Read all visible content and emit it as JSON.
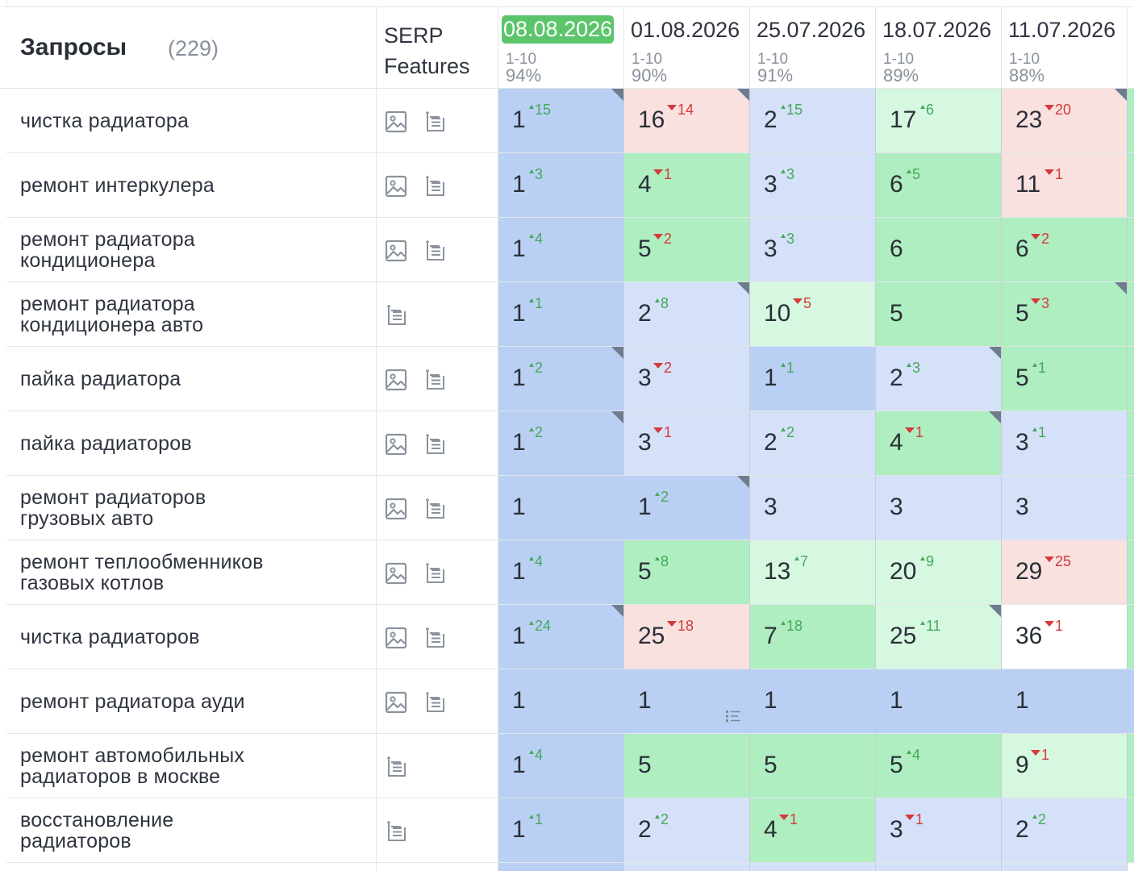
{
  "header": {
    "title": "Запросы",
    "count": "(229)",
    "serp_label": "SERP\nFeatures",
    "dates": [
      {
        "date": "08.08.2026",
        "range": "1-10",
        "pct": "94%",
        "active": true
      },
      {
        "date": "01.08.2026",
        "range": "1-10",
        "pct": "90%",
        "active": false
      },
      {
        "date": "25.07.2026",
        "range": "1-10",
        "pct": "91%",
        "active": false
      },
      {
        "date": "18.07.2026",
        "range": "1-10",
        "pct": "89%",
        "active": false
      },
      {
        "date": "11.07.2026",
        "range": "1-10",
        "pct": "88%",
        "active": false
      }
    ],
    "next_date_partial": "0"
  },
  "colors": {
    "blue_dark": "#b9d0f4",
    "blue_light": "#d4e1f8",
    "green": "#aeeec0",
    "green_light": "#d6f8e0",
    "red_light": "#f9e1df",
    "white": "#ffffff",
    "active_date": "#5cc56c",
    "up": "#46a85a",
    "down": "#d43a3a"
  },
  "rows": [
    {
      "query": "чистка радиатора",
      "serp": [
        "image",
        "snippet"
      ],
      "cells": [
        {
          "pos": "1",
          "delta": "15",
          "dir": "up",
          "bg": "blue_dark",
          "corner": true
        },
        {
          "pos": "16",
          "delta": "14",
          "dir": "down",
          "bg": "red_light",
          "corner": true
        },
        {
          "pos": "2",
          "delta": "15",
          "dir": "up",
          "bg": "blue_light"
        },
        {
          "pos": "17",
          "delta": "6",
          "dir": "up",
          "bg": "green_light"
        },
        {
          "pos": "23",
          "delta": "20",
          "dir": "down",
          "bg": "red_light",
          "corner": true
        }
      ],
      "edge": "green"
    },
    {
      "query": "ремонт интеркулера",
      "serp": [
        "image",
        "snippet"
      ],
      "cells": [
        {
          "pos": "1",
          "delta": "3",
          "dir": "up",
          "bg": "blue_dark"
        },
        {
          "pos": "4",
          "delta": "1",
          "dir": "down",
          "bg": "green"
        },
        {
          "pos": "3",
          "delta": "3",
          "dir": "up",
          "bg": "blue_light"
        },
        {
          "pos": "6",
          "delta": "5",
          "dir": "up",
          "bg": "green"
        },
        {
          "pos": "11",
          "delta": "1",
          "dir": "down",
          "bg": "red_light"
        }
      ],
      "edge": "green"
    },
    {
      "query": "ремонт радиатора\nкондиционера",
      "serp": [
        "image",
        "snippet"
      ],
      "cells": [
        {
          "pos": "1",
          "delta": "4",
          "dir": "up",
          "bg": "blue_dark"
        },
        {
          "pos": "5",
          "delta": "2",
          "dir": "down",
          "bg": "green"
        },
        {
          "pos": "3",
          "delta": "3",
          "dir": "up",
          "bg": "blue_light"
        },
        {
          "pos": "6",
          "delta": "",
          "dir": "",
          "bg": "green"
        },
        {
          "pos": "6",
          "delta": "2",
          "dir": "down",
          "bg": "green"
        }
      ],
      "edge": "green"
    },
    {
      "query": "ремонт радиатора\nкондиционера авто",
      "serp": [
        "snippet"
      ],
      "cells": [
        {
          "pos": "1",
          "delta": "1",
          "dir": "up",
          "bg": "blue_dark"
        },
        {
          "pos": "2",
          "delta": "8",
          "dir": "up",
          "bg": "blue_light",
          "corner": true
        },
        {
          "pos": "10",
          "delta": "5",
          "dir": "down",
          "bg": "green_light"
        },
        {
          "pos": "5",
          "delta": "",
          "dir": "",
          "bg": "green"
        },
        {
          "pos": "5",
          "delta": "3",
          "dir": "down",
          "bg": "green",
          "corner": true
        }
      ],
      "edge": "green"
    },
    {
      "query": "пайка радиатора",
      "serp": [
        "image",
        "snippet"
      ],
      "cells": [
        {
          "pos": "1",
          "delta": "2",
          "dir": "up",
          "bg": "blue_dark",
          "corner": true
        },
        {
          "pos": "3",
          "delta": "2",
          "dir": "down",
          "bg": "blue_light"
        },
        {
          "pos": "1",
          "delta": "1",
          "dir": "up",
          "bg": "blue_dark"
        },
        {
          "pos": "2",
          "delta": "3",
          "dir": "up",
          "bg": "blue_light",
          "corner": true
        },
        {
          "pos": "5",
          "delta": "1",
          "dir": "up",
          "bg": "green"
        }
      ],
      "edge": "green"
    },
    {
      "query": "пайка радиаторов",
      "serp": [
        "image",
        "snippet"
      ],
      "cells": [
        {
          "pos": "1",
          "delta": "2",
          "dir": "up",
          "bg": "blue_dark",
          "corner": true
        },
        {
          "pos": "3",
          "delta": "1",
          "dir": "down",
          "bg": "blue_light"
        },
        {
          "pos": "2",
          "delta": "2",
          "dir": "up",
          "bg": "blue_light"
        },
        {
          "pos": "4",
          "delta": "1",
          "dir": "down",
          "bg": "green",
          "corner": true
        },
        {
          "pos": "3",
          "delta": "1",
          "dir": "up",
          "bg": "blue_light"
        }
      ],
      "edge": "green"
    },
    {
      "query": "ремонт радиаторов\nгрузовых авто",
      "serp": [
        "image",
        "snippet"
      ],
      "cells": [
        {
          "pos": "1",
          "delta": "",
          "dir": "",
          "bg": "blue_dark"
        },
        {
          "pos": "1",
          "delta": "2",
          "dir": "up",
          "bg": "blue_dark",
          "corner": true
        },
        {
          "pos": "3",
          "delta": "",
          "dir": "",
          "bg": "blue_light"
        },
        {
          "pos": "3",
          "delta": "",
          "dir": "",
          "bg": "blue_light"
        },
        {
          "pos": "3",
          "delta": "",
          "dir": "",
          "bg": "blue_light"
        }
      ],
      "edge": "green"
    },
    {
      "query": "ремонт теплообменников\nгазовых котлов",
      "serp": [
        "image",
        "snippet"
      ],
      "cells": [
        {
          "pos": "1",
          "delta": "4",
          "dir": "up",
          "bg": "blue_dark"
        },
        {
          "pos": "5",
          "delta": "8",
          "dir": "up",
          "bg": "green"
        },
        {
          "pos": "13",
          "delta": "7",
          "dir": "up",
          "bg": "green_light"
        },
        {
          "pos": "20",
          "delta": "9",
          "dir": "up",
          "bg": "green_light"
        },
        {
          "pos": "29",
          "delta": "25",
          "dir": "down",
          "bg": "red_light"
        }
      ],
      "edge": "green"
    },
    {
      "query": "чистка радиаторов",
      "serp": [
        "image",
        "snippet"
      ],
      "cells": [
        {
          "pos": "1",
          "delta": "24",
          "dir": "up",
          "bg": "blue_dark",
          "corner": true
        },
        {
          "pos": "25",
          "delta": "18",
          "dir": "down",
          "bg": "red_light"
        },
        {
          "pos": "7",
          "delta": "18",
          "dir": "up",
          "bg": "green"
        },
        {
          "pos": "25",
          "delta": "11",
          "dir": "up",
          "bg": "green_light",
          "corner": true
        },
        {
          "pos": "36",
          "delta": "1",
          "dir": "down",
          "bg": "white"
        }
      ],
      "edge": "green"
    },
    {
      "query": "ремонт радиатора ауди",
      "serp": [
        "image",
        "snippet"
      ],
      "cells": [
        {
          "pos": "1",
          "delta": "",
          "dir": "",
          "bg": "blue_dark"
        },
        {
          "pos": "1",
          "delta": "",
          "dir": "",
          "bg": "blue_dark",
          "snippet": true
        },
        {
          "pos": "1",
          "delta": "",
          "dir": "",
          "bg": "blue_dark"
        },
        {
          "pos": "1",
          "delta": "",
          "dir": "",
          "bg": "blue_dark"
        },
        {
          "pos": "1",
          "delta": "",
          "dir": "",
          "bg": "blue_dark"
        }
      ],
      "edge": "blue_dark"
    },
    {
      "query": "ремонт автомобильных\nрадиаторов в москве",
      "serp": [
        "snippet"
      ],
      "cells": [
        {
          "pos": "1",
          "delta": "4",
          "dir": "up",
          "bg": "blue_dark"
        },
        {
          "pos": "5",
          "delta": "",
          "dir": "",
          "bg": "green"
        },
        {
          "pos": "5",
          "delta": "",
          "dir": "",
          "bg": "green"
        },
        {
          "pos": "5",
          "delta": "4",
          "dir": "up",
          "bg": "green"
        },
        {
          "pos": "9",
          "delta": "1",
          "dir": "down",
          "bg": "green_light"
        }
      ],
      "edge": "green"
    },
    {
      "query": "восстановление\nрадиаторов",
      "serp": [
        "snippet"
      ],
      "cells": [
        {
          "pos": "1",
          "delta": "1",
          "dir": "up",
          "bg": "blue_dark"
        },
        {
          "pos": "2",
          "delta": "2",
          "dir": "up",
          "bg": "blue_light"
        },
        {
          "pos": "4",
          "delta": "1",
          "dir": "down",
          "bg": "green"
        },
        {
          "pos": "3",
          "delta": "1",
          "dir": "down",
          "bg": "blue_light"
        },
        {
          "pos": "2",
          "delta": "2",
          "dir": "up",
          "bg": "blue_light"
        }
      ],
      "edge": "green"
    }
  ]
}
